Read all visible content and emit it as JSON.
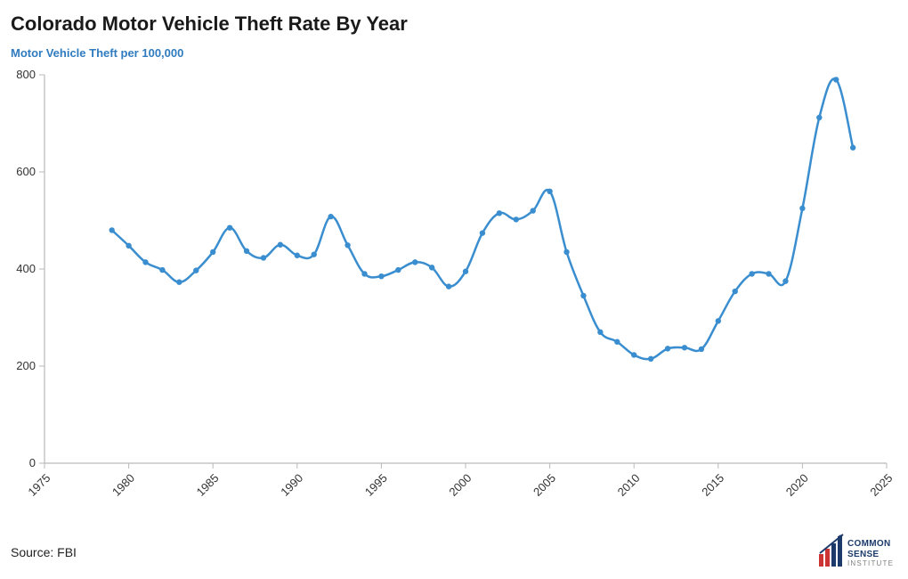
{
  "title": "Colorado Motor Vehicle Theft Rate By Year",
  "subtitle": "Motor Vehicle Theft per 100,000",
  "subtitle_color": "#2f7bbf",
  "source": "Source: FBI",
  "chart": {
    "type": "line",
    "background_color": "#ffffff",
    "axis_color": "#b9b9b9",
    "line_color": "#3a8ecf",
    "marker_color": "#3a8ecf",
    "marker_radius": 3.2,
    "line_width": 2.5,
    "x_axis": {
      "min": 1975,
      "max": 2025,
      "tick_step": 5,
      "ticks": [
        1975,
        1980,
        1985,
        1990,
        1995,
        2000,
        2005,
        2010,
        2015,
        2020,
        2025
      ],
      "tick_rotation_deg": -45,
      "label_fontsize": 13
    },
    "y_axis": {
      "min": 0,
      "max": 800,
      "tick_step": 200,
      "ticks": [
        0,
        200,
        400,
        600,
        800
      ],
      "label_fontsize": 13
    },
    "series": [
      {
        "name": "theft_rate",
        "years": [
          1979,
          1980,
          1981,
          1982,
          1983,
          1984,
          1985,
          1986,
          1987,
          1988,
          1989,
          1990,
          1991,
          1992,
          1993,
          1994,
          1995,
          1996,
          1997,
          1998,
          1999,
          2000,
          2001,
          2002,
          2003,
          2004,
          2005,
          2006,
          2007,
          2008,
          2009,
          2010,
          2011,
          2012,
          2013,
          2014,
          2015,
          2016,
          2017,
          2018,
          2019,
          2020,
          2021,
          2022,
          2023
        ],
        "values": [
          480,
          448,
          414,
          398,
          373,
          397,
          435,
          485,
          437,
          423,
          450,
          428,
          430,
          508,
          449,
          390,
          385,
          398,
          414,
          403,
          364,
          395,
          474,
          515,
          502,
          520,
          560,
          435,
          345,
          270,
          250,
          223,
          215,
          236,
          238,
          235,
          293,
          354,
          390,
          390,
          375,
          525,
          712,
          790,
          650
        ]
      }
    ]
  },
  "logo": {
    "line1": "COMMON",
    "line2": "SENSE",
    "line3": "INSTITUTE",
    "bar_colors": [
      "#cc3333",
      "#cc3333",
      "#1d3b6a",
      "#1d3b6a"
    ],
    "text_color_dark": "#1d3b6a",
    "text_color_light": "#808080"
  }
}
